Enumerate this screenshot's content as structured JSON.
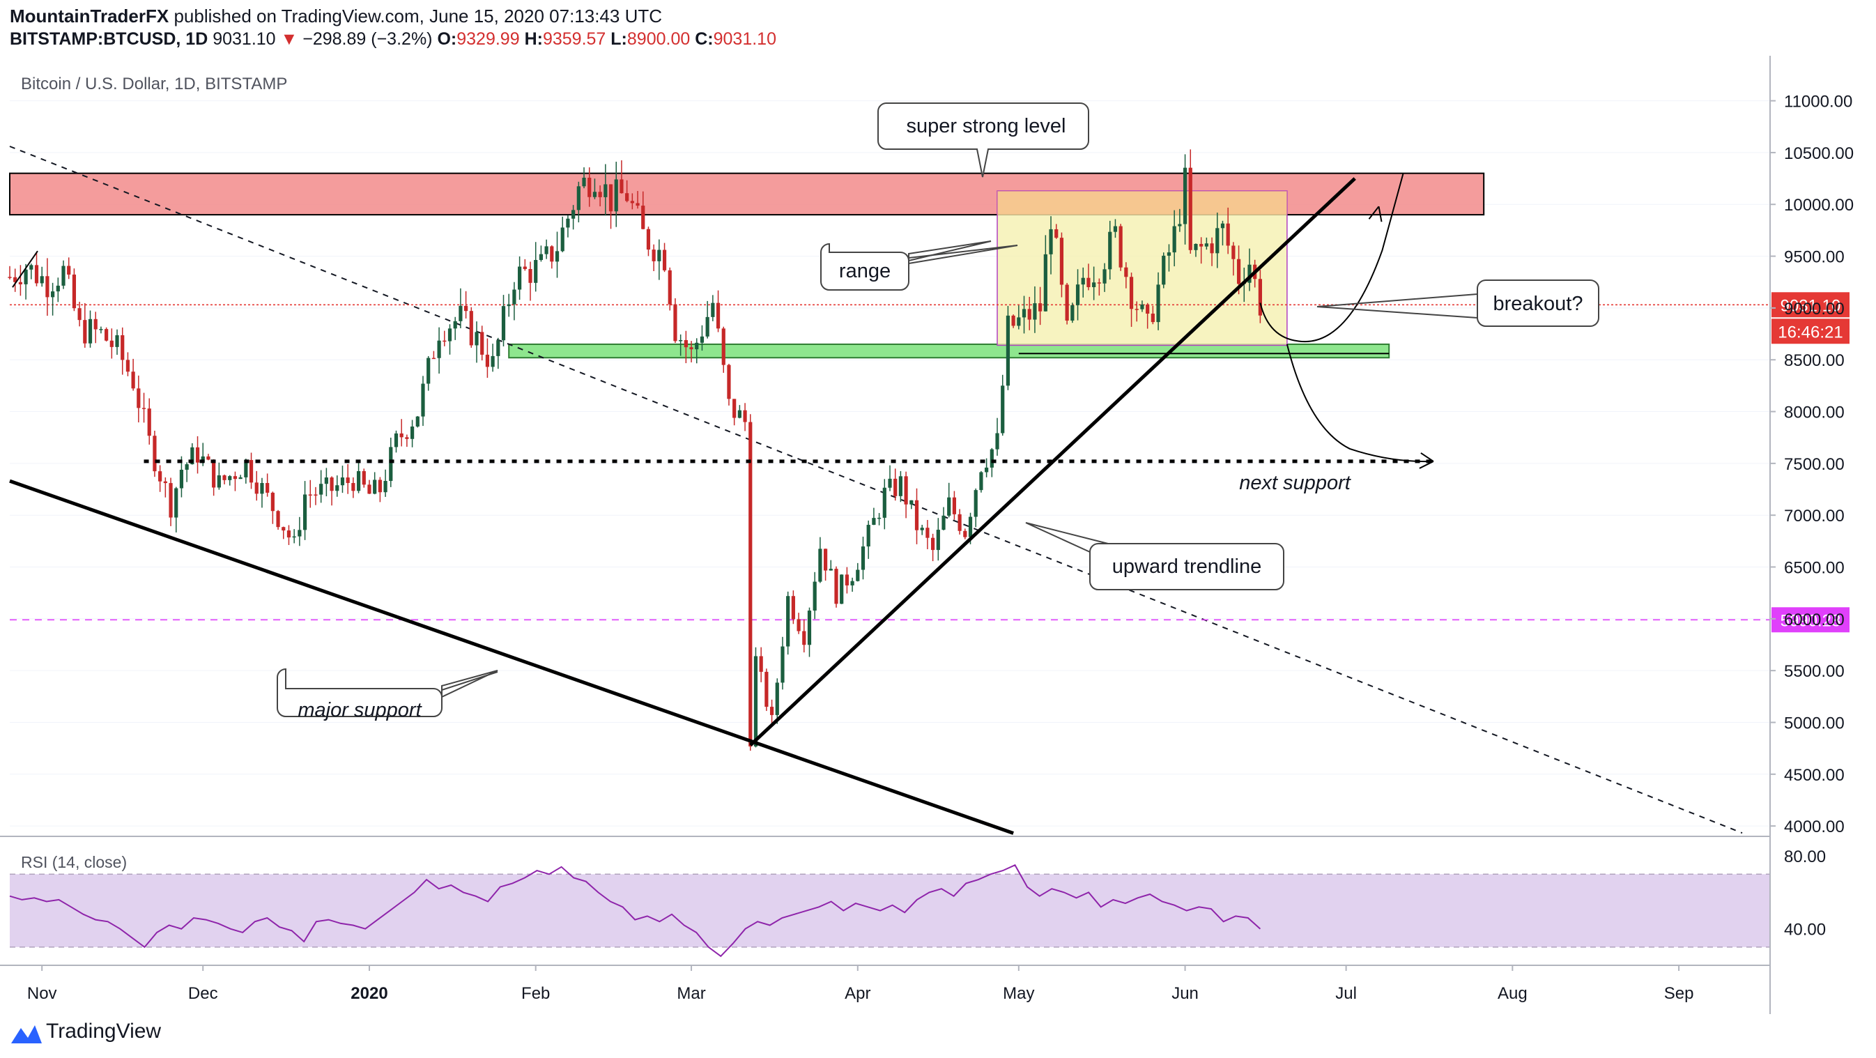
{
  "header": {
    "author": "MountainTraderFX",
    "published_text": " published on TradingView.com, June 15, 2020 07:13:43 UTC",
    "symbol": "BITSTAMP:BTCUSD, 1D",
    "last": "9031.10",
    "change_arrow": "▼",
    "change": "−298.89 (−3.2%)",
    "open_label": "O:",
    "open": "9329.99",
    "high_label": "H:",
    "high": "9359.57",
    "low_label": "L:",
    "low": "8900.00",
    "close_label": "C:",
    "close": "9031.10"
  },
  "chart_data": {
    "type": "candlestick",
    "title": "Bitcoin / U.S. Dollar, 1D, BITSTAMP",
    "ylim": [
      3900,
      11300
    ],
    "y_ticks": [
      "11000.00",
      "10500.00",
      "10000.00",
      "9500.00",
      "9000.00",
      "8500.00",
      "8000.00",
      "7500.00",
      "7000.00",
      "6500.00",
      "6000.00",
      "5500.00",
      "5000.00",
      "4500.00",
      "4000.00"
    ],
    "x_ticks": [
      {
        "label": "Nov",
        "date": "2019-11-01"
      },
      {
        "label": "Dec",
        "date": "2019-12-01"
      },
      {
        "label": "2020",
        "date": "2020-01-01",
        "bold": true
      },
      {
        "label": "Feb",
        "date": "2020-02-01"
      },
      {
        "label": "Mar",
        "date": "2020-03-01"
      },
      {
        "label": "Apr",
        "date": "2020-04-01"
      },
      {
        "label": "May",
        "date": "2020-05-01"
      },
      {
        "label": "Jun",
        "date": "2020-06-01"
      },
      {
        "label": "Jul",
        "date": "2020-07-01"
      },
      {
        "label": "Aug",
        "date": "2020-08-01"
      },
      {
        "label": "Sep",
        "date": "2020-09-01"
      }
    ],
    "x_range": [
      "2019-10-26",
      "2020-09-18"
    ],
    "price_path": [
      [
        "2019-10-26",
        9300
      ],
      [
        "2019-10-29",
        9400
      ],
      [
        "2019-11-02",
        9250
      ],
      [
        "2019-11-05",
        9350
      ],
      [
        "2019-11-08",
        8800
      ],
      [
        "2019-11-12",
        8750
      ],
      [
        "2019-11-15",
        8600
      ],
      [
        "2019-11-18",
        8300
      ],
      [
        "2019-11-21",
        7700
      ],
      [
        "2019-11-25",
        7100
      ],
      [
        "2019-11-27",
        7450
      ],
      [
        "2019-11-30",
        7600
      ],
      [
        "2019-12-04",
        7300
      ],
      [
        "2019-12-09",
        7500
      ],
      [
        "2019-12-12",
        7250
      ],
      [
        "2019-12-16",
        6900
      ],
      [
        "2019-12-18",
        6700
      ],
      [
        "2019-12-20",
        7200
      ],
      [
        "2019-12-25",
        7250
      ],
      [
        "2019-12-29",
        7350
      ],
      [
        "2020-01-01",
        7200
      ],
      [
        "2020-01-03",
        7250
      ],
      [
        "2020-01-06",
        7700
      ],
      [
        "2020-01-10",
        8000
      ],
      [
        "2020-01-14",
        8800
      ],
      [
        "2020-01-18",
        8900
      ],
      [
        "2020-01-21",
        8700
      ],
      [
        "2020-01-24",
        8450
      ],
      [
        "2020-01-28",
        9300
      ],
      [
        "2020-02-02",
        9400
      ],
      [
        "2020-02-05",
        9600
      ],
      [
        "2020-02-09",
        10150
      ],
      [
        "2020-02-12",
        10300
      ],
      [
        "2020-02-15",
        10050
      ],
      [
        "2020-02-18",
        10100
      ],
      [
        "2020-02-21",
        9700
      ],
      [
        "2020-02-25",
        9500
      ],
      [
        "2020-02-27",
        8800
      ],
      [
        "2020-03-01",
        8550
      ],
      [
        "2020-03-05",
        9050
      ],
      [
        "2020-03-08",
        8050
      ],
      [
        "2020-03-11",
        7900
      ],
      [
        "2020-03-12",
        4850
      ],
      [
        "2020-03-13",
        5600
      ],
      [
        "2020-03-16",
        5000
      ],
      [
        "2020-03-19",
        6200
      ],
      [
        "2020-03-22",
        5850
      ],
      [
        "2020-03-25",
        6700
      ],
      [
        "2020-03-28",
        6250
      ],
      [
        "2020-03-31",
        6450
      ],
      [
        "2020-04-03",
        6800
      ],
      [
        "2020-04-06",
        7200
      ],
      [
        "2020-04-09",
        7300
      ],
      [
        "2020-04-12",
        6900
      ],
      [
        "2020-04-15",
        6650
      ],
      [
        "2020-04-18",
        7100
      ],
      [
        "2020-04-21",
        6850
      ],
      [
        "2020-04-24",
        7500
      ],
      [
        "2020-04-27",
        7700
      ],
      [
        "2020-04-29",
        8800
      ],
      [
        "2020-05-02",
        8900
      ],
      [
        "2020-05-05",
        9000
      ],
      [
        "2020-05-07",
        9900
      ],
      [
        "2020-05-10",
        8750
      ],
      [
        "2020-05-13",
        9300
      ],
      [
        "2020-05-16",
        9400
      ],
      [
        "2020-05-19",
        9700
      ],
      [
        "2020-05-22",
        9150
      ],
      [
        "2020-05-25",
        8800
      ],
      [
        "2020-05-27",
        9200
      ],
      [
        "2020-05-30",
        9700
      ],
      [
        "2020-06-01",
        10200
      ],
      [
        "2020-06-02",
        9500
      ],
      [
        "2020-06-05",
        9600
      ],
      [
        "2020-06-08",
        9750
      ],
      [
        "2020-06-11",
        9300
      ],
      [
        "2020-06-13",
        9450
      ],
      [
        "2020-06-15",
        9031
      ]
    ],
    "hlines": [
      {
        "name": "current price",
        "value": 9031.1,
        "color": "#e53935",
        "label": "9031.10",
        "countdown": "16:46:21"
      },
      {
        "name": "low level",
        "value": 5990.28,
        "color": "#e040fb",
        "label": "5990.28"
      }
    ],
    "zones": [
      {
        "name": "resistance",
        "from": 9900,
        "to": 10300,
        "color": "#f28b8b"
      },
      {
        "name": "support",
        "from": 8520,
        "to": 8650,
        "color": "#8ee68e"
      },
      {
        "name": "range",
        "from": 8640,
        "to": 10130,
        "color": "#f5f0b0"
      }
    ],
    "annotations": {
      "super_strong": "super strong level",
      "range": "range",
      "breakout": "breakout?",
      "next_support": "next support",
      "upward_trendline": "upward trendline",
      "major_support": "major support"
    },
    "rsi": {
      "title": "RSI (14, close)",
      "ylim": [
        20,
        90
      ],
      "ticks": [
        "80.00",
        "40.00"
      ],
      "band": [
        30,
        70
      ],
      "values": [
        58,
        56,
        57,
        55,
        56,
        52,
        48,
        45,
        44,
        40,
        35,
        30,
        38,
        42,
        40,
        46,
        45,
        43,
        40,
        38,
        44,
        46,
        41,
        39,
        33,
        44,
        45,
        43,
        42,
        40,
        45,
        50,
        55,
        60,
        67,
        62,
        64,
        60,
        58,
        55,
        63,
        65,
        68,
        72,
        70,
        74,
        68,
        66,
        60,
        55,
        52,
        45,
        47,
        44,
        48,
        42,
        38,
        30,
        25,
        32,
        40,
        44,
        42,
        46,
        48,
        50,
        52,
        55,
        50,
        54,
        52,
        50,
        53,
        49,
        56,
        60,
        62,
        58,
        65,
        67,
        70,
        72,
        75,
        63,
        58,
        62,
        60,
        57,
        60,
        52,
        56,
        54,
        57,
        59,
        55,
        53,
        50,
        52,
        51,
        44,
        47,
        46,
        40
      ]
    }
  },
  "footer": {
    "brand": "TradingView"
  }
}
